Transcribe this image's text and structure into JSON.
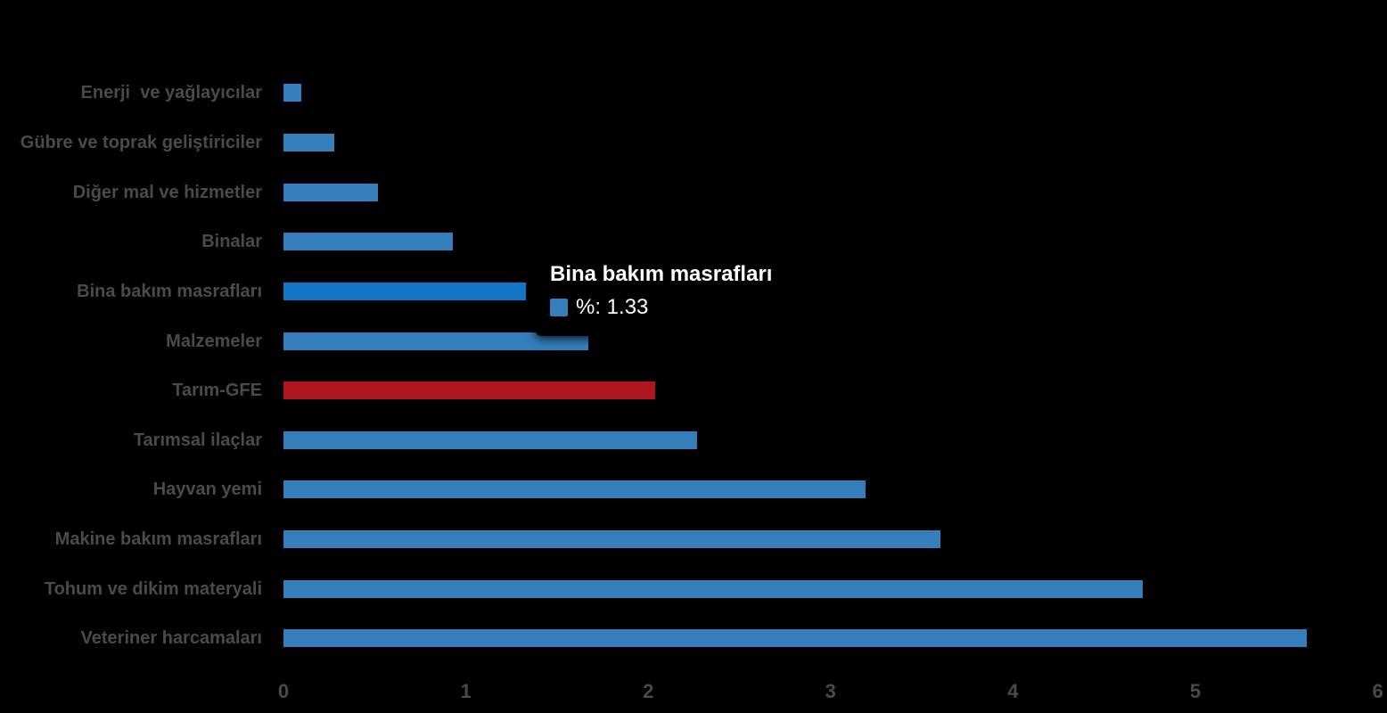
{
  "chart_data": {
    "type": "bar",
    "orientation": "horizontal",
    "title": "",
    "xlabel": "",
    "ylabel": "",
    "categories": [
      "Enerji  ve yağlayıcılar",
      "Gübre ve toprak geliştiriciler",
      "Diğer mal ve hizmetler",
      "Binalar",
      "Bina bakım masrafları",
      "Malzemeler",
      "Tarım-GFE",
      "Tarımsal ilaçlar",
      "Hayvan yemi",
      "Makine bakım masrafları",
      "Tohum ve dikim materyali",
      "Veteriner harcamaları"
    ],
    "values": [
      0.1,
      0.28,
      0.52,
      0.93,
      1.33,
      1.67,
      2.04,
      2.27,
      3.19,
      3.6,
      4.71,
      5.61
    ],
    "series_name": "%",
    "xlim": [
      0,
      6
    ],
    "x_tick_labels": [
      "0",
      "1",
      "2",
      "3",
      "4",
      "5",
      "6"
    ],
    "grid": false,
    "legend": false,
    "highlight_index": 4,
    "accent_index": 6,
    "colors": {
      "bar": "#337EBB",
      "bar_highlight": "#1276C6",
      "bar_accent": "#AE161F",
      "label_text": "#4A4A4A",
      "axis_text": "#4A4A4A",
      "background": "#000000",
      "tooltip_background": "#000000",
      "tooltip_text": "#FFFFFF"
    }
  },
  "tooltip": {
    "title": "Bina bakım masrafları",
    "value_line": "%: 1.33"
  }
}
